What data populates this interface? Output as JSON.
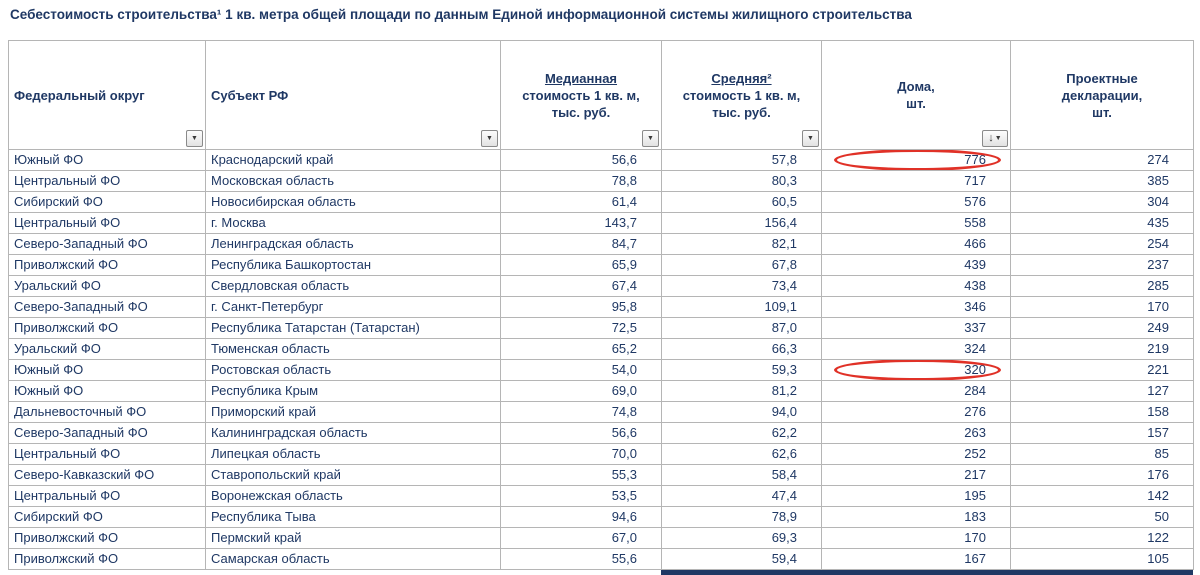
{
  "title": "Себестоимость строительства¹ 1 кв. метра общей площади по данным Единой информационной системы жилищного строительства",
  "colors": {
    "text": "#1F3864",
    "annotation_red": "#E03127",
    "grid_border": "#B5B5B5",
    "dark_bar": "#1F3864"
  },
  "icons": {
    "filter_dropdown": "▼",
    "sort_descending": "↓"
  },
  "table": {
    "header": {
      "federal_district": "Федеральный округ",
      "subject": "Субъект РФ",
      "median": {
        "line1": "Медианная",
        "line2": "стоимость 1 кв. м,",
        "line3": "тыс. руб."
      },
      "average": {
        "line1": "Средняя²",
        "line2": "стоимость 1 кв. м,",
        "line3": "тыс. руб."
      },
      "houses": {
        "line1": "Дома,",
        "line2": "шт."
      },
      "declarations": {
        "line1": "Проектные",
        "line2": "декларации,",
        "line3": "шт."
      }
    },
    "rows": [
      {
        "district": "Южный ФО",
        "region": "Краснодарский край",
        "median": "56,6",
        "average": "57,8",
        "houses": "776",
        "declarations": "274",
        "circled": true
      },
      {
        "district": "Центральный ФО",
        "region": "Московская область",
        "median": "78,8",
        "average": "80,3",
        "houses": "717",
        "declarations": "385",
        "circled": false
      },
      {
        "district": "Сибирский ФО",
        "region": "Новосибирская область",
        "median": "61,4",
        "average": "60,5",
        "houses": "576",
        "declarations": "304",
        "circled": false
      },
      {
        "district": "Центральный ФО",
        "region": "г. Москва",
        "median": "143,7",
        "average": "156,4",
        "houses": "558",
        "declarations": "435",
        "circled": false
      },
      {
        "district": "Северо-Западный ФО",
        "region": "Ленинградская область",
        "median": "84,7",
        "average": "82,1",
        "houses": "466",
        "declarations": "254",
        "circled": false
      },
      {
        "district": "Приволжский ФО",
        "region": "Республика Башкортостан",
        "median": "65,9",
        "average": "67,8",
        "houses": "439",
        "declarations": "237",
        "circled": false
      },
      {
        "district": "Уральский ФО",
        "region": "Свердловская область",
        "median": "67,4",
        "average": "73,4",
        "houses": "438",
        "declarations": "285",
        "circled": false
      },
      {
        "district": "Северо-Западный ФО",
        "region": "г. Санкт-Петербург",
        "median": "95,8",
        "average": "109,1",
        "houses": "346",
        "declarations": "170",
        "circled": false
      },
      {
        "district": "Приволжский ФО",
        "region": "Республика Татарстан (Татарстан)",
        "median": "72,5",
        "average": "87,0",
        "houses": "337",
        "declarations": "249",
        "circled": false
      },
      {
        "district": "Уральский ФО",
        "region": "Тюменская область",
        "median": "65,2",
        "average": "66,3",
        "houses": "324",
        "declarations": "219",
        "circled": false
      },
      {
        "district": "Южный ФО",
        "region": "Ростовская область",
        "median": "54,0",
        "average": "59,3",
        "houses": "320",
        "declarations": "221",
        "circled": true
      },
      {
        "district": "Южный ФО",
        "region": "Республика Крым",
        "median": "69,0",
        "average": "81,2",
        "houses": "284",
        "declarations": "127",
        "circled": false
      },
      {
        "district": "Дальневосточный ФО",
        "region": "Приморский край",
        "median": "74,8",
        "average": "94,0",
        "houses": "276",
        "declarations": "158",
        "circled": false
      },
      {
        "district": "Северо-Западный ФО",
        "region": "Калининградская область",
        "median": "56,6",
        "average": "62,2",
        "houses": "263",
        "declarations": "157",
        "circled": false
      },
      {
        "district": "Центральный ФО",
        "region": "Липецкая область",
        "median": "70,0",
        "average": "62,6",
        "houses": "252",
        "declarations": "85",
        "circled": false
      },
      {
        "district": "Северо-Кавказский ФО",
        "region": "Ставропольский край",
        "median": "55,3",
        "average": "58,4",
        "houses": "217",
        "declarations": "176",
        "circled": false
      },
      {
        "district": "Центральный ФО",
        "region": "Воронежская область",
        "median": "53,5",
        "average": "47,4",
        "houses": "195",
        "declarations": "142",
        "circled": false
      },
      {
        "district": "Сибирский ФО",
        "region": "Республика Тыва",
        "median": "94,6",
        "average": "78,9",
        "houses": "183",
        "declarations": "50",
        "circled": false
      },
      {
        "district": "Приволжский ФО",
        "region": "Пермский край",
        "median": "67,0",
        "average": "69,3",
        "houses": "170",
        "declarations": "122",
        "circled": false
      },
      {
        "district": "Приволжский ФО",
        "region": "Самарская область",
        "median": "55,6",
        "average": "59,4",
        "houses": "167",
        "declarations": "105",
        "circled": false
      }
    ]
  }
}
